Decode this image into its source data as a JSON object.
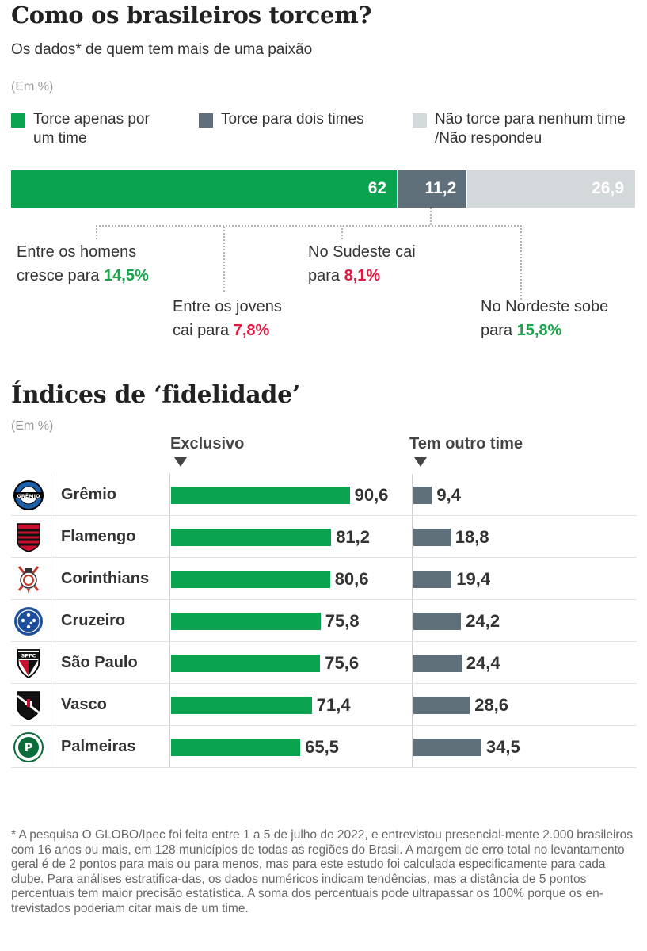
{
  "header": {
    "title": "Como os brasileiros torcem?",
    "subtitle": "Os dados* de quem tem mais de uma paixão",
    "unit": "(Em %)"
  },
  "legend": [
    {
      "line1": "Torce apenas por",
      "line2": "um time",
      "color": "#0aa34f"
    },
    {
      "line1": "Torce para dois times",
      "line2": "",
      "color": "#5f707a"
    },
    {
      "line1": "Não torce para nenhum time",
      "line2": "/Não respondeu",
      "color": "#d3d8da"
    }
  ],
  "stack": [
    {
      "label": "62",
      "value": 62,
      "color": "#0aa34f"
    },
    {
      "label": "11,2",
      "value": 11.2,
      "color": "#5f707a"
    },
    {
      "label": "26,9",
      "value": 26.9,
      "color": "#d3d8da"
    }
  ],
  "notes": {
    "men": {
      "line1": "Entre os homens",
      "pre": "cresce para ",
      "value": "14,5%"
    },
    "young": {
      "line1": "Entre os jovens",
      "pre": "cai para ",
      "value": "7,8%"
    },
    "southeast": {
      "line1": "No Sudeste cai",
      "pre": "para ",
      "value": "8,1%"
    },
    "northeast": {
      "line1": "No Nordeste sobe",
      "pre": "para ",
      "value": "15,8%"
    }
  },
  "section2": {
    "title": "Índices de ‘fidelidade’",
    "unit": "(Em %)",
    "col_exclusive": "Exclusivo",
    "col_other": "Tem outro time"
  },
  "chart_data": {
    "type": "bar",
    "categories": [
      "Grêmio",
      "Flamengo",
      "Corinthians",
      "Cruzeiro",
      "São Paulo",
      "Vasco",
      "Palmeiras"
    ],
    "series": [
      {
        "name": "Exclusivo",
        "values": [
          90.6,
          81.2,
          80.6,
          75.8,
          75.6,
          71.4,
          65.5
        ],
        "labels": [
          "90,6",
          "81,2",
          "80,6",
          "75,8",
          "75,6",
          "71,4",
          "65,5"
        ],
        "color": "#0aa34f"
      },
      {
        "name": "Tem outro time",
        "values": [
          9.4,
          18.8,
          19.4,
          24.2,
          24.4,
          28.6,
          34.5
        ],
        "labels": [
          "9,4",
          "18,8",
          "19,4",
          "24,2",
          "24,4",
          "28,6",
          "34,5"
        ],
        "color": "#5f707a"
      }
    ]
  },
  "clubs": [
    {
      "name": "Grêmio",
      "logo": "gremio-crest-icon",
      "badge_text": "GRÊMIO"
    },
    {
      "name": "Flamengo",
      "logo": "flamengo-crest-icon"
    },
    {
      "name": "Corinthians",
      "logo": "corinthians-crest-icon"
    },
    {
      "name": "Cruzeiro",
      "logo": "cruzeiro-crest-icon"
    },
    {
      "name": "São Paulo",
      "logo": "sao-paulo-crest-icon",
      "badge_text": "SPFC"
    },
    {
      "name": "Vasco",
      "logo": "vasco-crest-icon"
    },
    {
      "name": "Palmeiras",
      "logo": "palmeiras-crest-icon"
    }
  ],
  "footnote": "* A pesquisa O GLOBO/Ipec foi feita entre 1 a 5 de julho de 2022, e entrevistou presencial-mente 2.000 brasileiros com 16 anos ou mais, em 128 municípios de todas as regiões do Brasil. A margem de erro total no levantamento geral é de 2 pontos para mais ou para menos, mas para este estudo foi calculada especificamente para cada clube. Para análises estratifica-das, os dados numéricos indicam tendências, mas a distância de 5 pontos percentuais tem maior precisão estatística. A soma dos percentuais pode ultrapassar os 100% porque os en-trevistados poderiam citar mais de um time."
}
